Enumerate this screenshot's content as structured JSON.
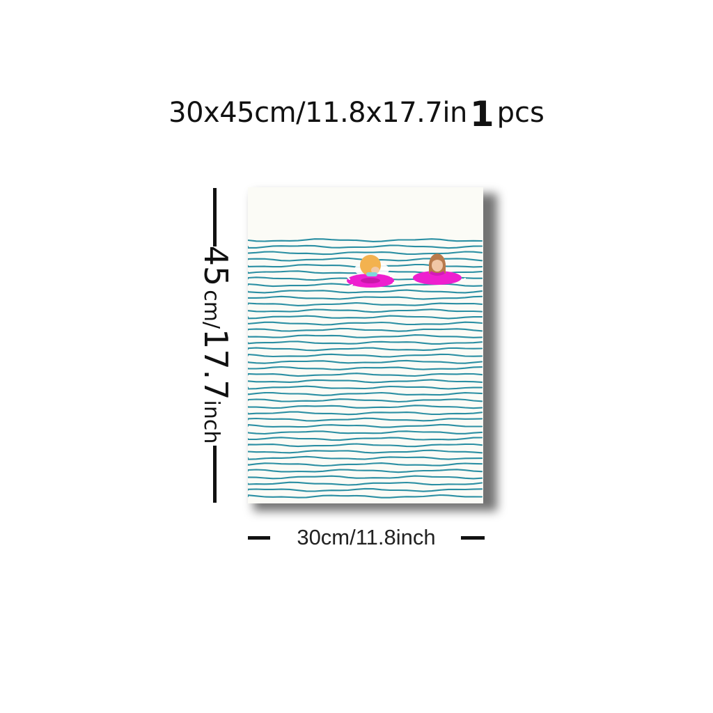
{
  "headline": {
    "size_text": "30x45cm/11.8x17.7in",
    "quantity": "1",
    "unit": "pcs"
  },
  "height_label": {
    "value": "45",
    "unit_text": "cm/",
    "inch_value": "17.7",
    "inch_unit": "inch"
  },
  "width_label": "30cm/11.8inch",
  "poster": {
    "sky_color": "#fbfbf6",
    "wave_color": "#2b8fa3",
    "float_color": "#ee1fcf",
    "left_swimmer_hair": "#f3b24f",
    "right_swimmer_hair": "#b87a4b"
  },
  "icons": [
    "poster-print-image",
    "left-swimmer",
    "right-swimmer",
    "dimension-tick"
  ]
}
